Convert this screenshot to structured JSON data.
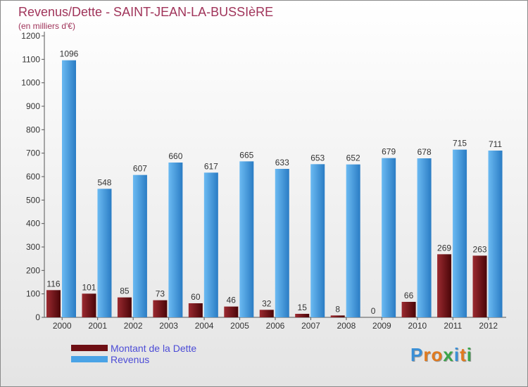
{
  "header": {
    "title": "Revenus/Dette - SAINT-JEAN-LA-BUSSIèRE",
    "subtitle": "(en milliers d'€)"
  },
  "legend": {
    "items": [
      {
        "label": "Montant de la Dette",
        "color": "#6e0f14"
      },
      {
        "label": "Revenus",
        "color": "#4aa3e6"
      }
    ]
  },
  "logo": {
    "text": "Proxiti",
    "letters": [
      {
        "ch": "P",
        "color": "#3a8fd6"
      },
      {
        "ch": "r",
        "color": "#e07a1f"
      },
      {
        "ch": "o",
        "color": "#e07a1f"
      },
      {
        "ch": "x",
        "color": "#3aa54a"
      },
      {
        "ch": "i",
        "color": "#3a8fd6"
      },
      {
        "ch": "t",
        "color": "#e07a1f"
      },
      {
        "ch": "i",
        "color": "#3aa54a"
      }
    ]
  },
  "chart_data": {
    "type": "bar",
    "categories": [
      "2000",
      "2001",
      "2002",
      "2003",
      "2004",
      "2005",
      "2006",
      "2007",
      "2008",
      "2009",
      "2010",
      "2011",
      "2012"
    ],
    "series": [
      {
        "name": "Montant de la Dette",
        "color": "#6e0f14",
        "values": [
          116,
          101,
          85,
          73,
          60,
          46,
          32,
          15,
          8,
          0,
          66,
          269,
          263
        ]
      },
      {
        "name": "Revenus",
        "color": "#4aa3e6",
        "values": [
          1096,
          548,
          607,
          660,
          617,
          665,
          633,
          653,
          652,
          679,
          678,
          715,
          711
        ]
      }
    ],
    "ylim": [
      0,
      1200
    ],
    "yticks": [
      0,
      100,
      200,
      300,
      400,
      500,
      600,
      700,
      800,
      900,
      1000,
      1100,
      1200
    ],
    "grid": false,
    "legend_position": "bottom-left"
  }
}
